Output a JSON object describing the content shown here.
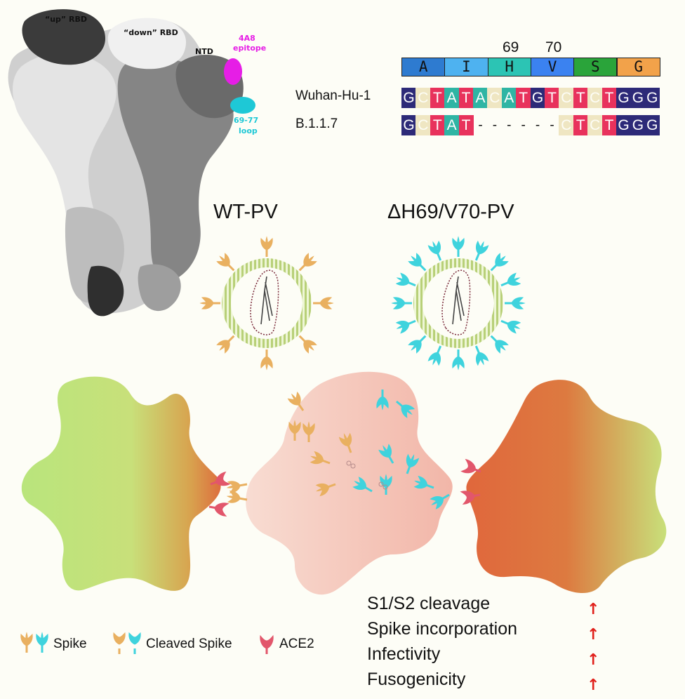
{
  "protein": {
    "up_rbd": "“up” RBD",
    "down_rbd": "“down” RBD",
    "ntd": "NTD",
    "epitope_line1": "4A8",
    "epitope_line2": "epitope",
    "loop_line1": "69-77",
    "loop_line2": "loop",
    "colors": {
      "epitope": "#e61ee6",
      "loop": "#1ec8d6"
    }
  },
  "alignment": {
    "residue_numbers": [
      "69",
      "70"
    ],
    "amino_acids": [
      {
        "letter": "A",
        "color": "#2e7bd0"
      },
      {
        "letter": "I",
        "color": "#4eb2f0"
      },
      {
        "letter": "H",
        "color": "#2cc4b4"
      },
      {
        "letter": "V",
        "color": "#3b82f0"
      },
      {
        "letter": "S",
        "color": "#2aa43a"
      },
      {
        "letter": "G",
        "color": "#f2a24a"
      }
    ],
    "sequences": [
      {
        "name": "Wuhan-Hu-1",
        "bases": [
          "G",
          "C",
          "T",
          "A",
          "T",
          "A",
          "C",
          "A",
          "T",
          "G",
          "T",
          "C",
          "T",
          "C",
          "T",
          "G",
          "G",
          "G"
        ]
      },
      {
        "name": "B.1.1.7",
        "bases": [
          "G",
          "C",
          "T",
          "A",
          "T",
          "-",
          "-",
          "-",
          "-",
          "-",
          "-",
          "C",
          "T",
          "C",
          "T",
          "G",
          "G",
          "G"
        ]
      }
    ],
    "base_colors": {
      "G": "#2d2a78",
      "C": "#efe6c2",
      "T": "#e8325c",
      "A": "#2fb5a4"
    }
  },
  "viruses": {
    "wt_label": "WT-PV",
    "mutant_label": "ΔH69/V70-PV",
    "colors": {
      "wt_spike": "#e9b060",
      "mutant_spike": "#3fd3dd",
      "membrane": "#c8dc8c"
    }
  },
  "legend": {
    "spike": "Spike",
    "cleaved_spike": "Cleaved Spike",
    "ace2": "ACE2",
    "ace2_color": "#e2566b"
  },
  "effects": {
    "items": [
      "S1/S2 cleavage",
      "Spike incorporation",
      "Infectivity",
      "Fusogenicity"
    ],
    "arrow_symbol": "↑"
  }
}
